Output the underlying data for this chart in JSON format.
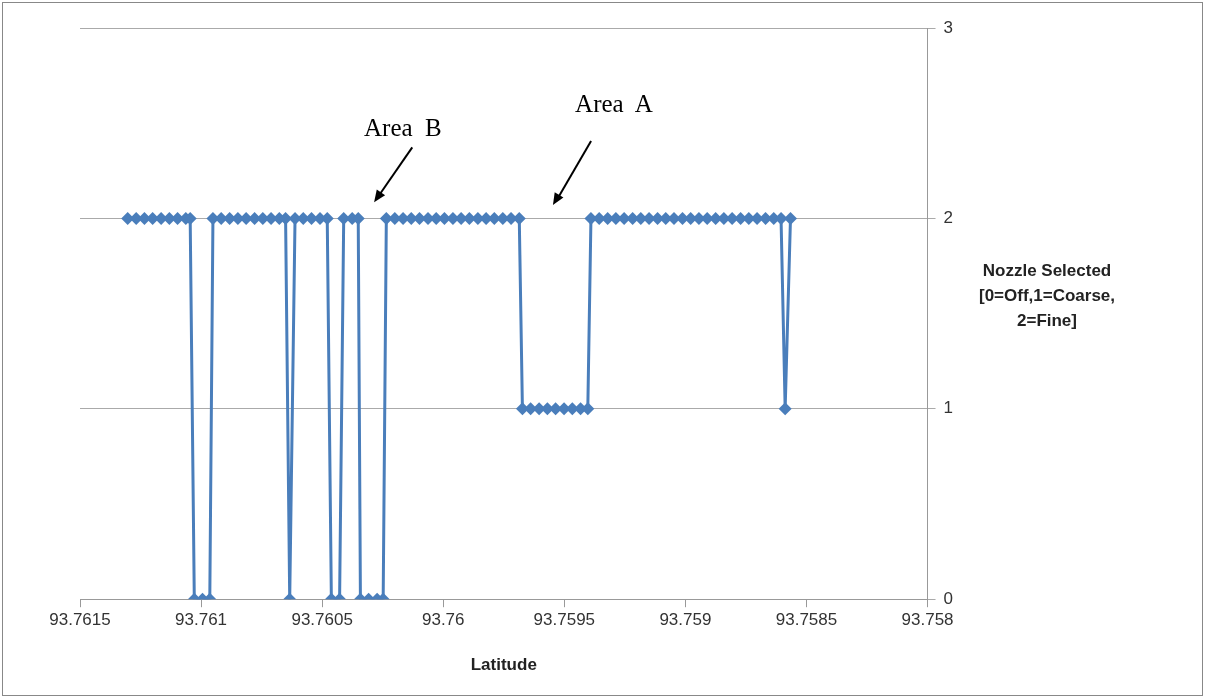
{
  "chart_data": {
    "type": "line",
    "xlabel": "Latitude",
    "ylabel": "Nozzle Selected [0=Off,1=Coarse, 2=Fine]",
    "xlim": [
      93.7615,
      93.758
    ],
    "xticks": [
      93.7615,
      93.761,
      93.7605,
      93.76,
      93.7595,
      93.759,
      93.7585,
      93.758
    ],
    "ylim": [
      0,
      3
    ],
    "yticks": [
      0,
      1,
      2,
      3
    ],
    "grid": "y",
    "legend": false,
    "marker": "diamond",
    "line_style": "solid",
    "series": [
      {
        "color": "#4a7ebb",
        "x": [
          93.761303,
          93.761268,
          93.761234,
          93.7612,
          93.761165,
          93.761131,
          93.761097,
          93.761063,
          93.761045,
          93.761028,
          93.760994,
          93.760964,
          93.760951,
          93.760917,
          93.760882,
          93.760848,
          93.760814,
          93.760779,
          93.760745,
          93.760711,
          93.760677,
          93.760651,
          93.760634,
          93.760612,
          93.760578,
          93.760544,
          93.760509,
          93.760479,
          93.760462,
          93.760428,
          93.760411,
          93.760376,
          93.760351,
          93.760342,
          93.760308,
          93.760273,
          93.760248,
          93.760235,
          93.7602,
          93.760166,
          93.760132,
          93.760098,
          93.760063,
          93.760029,
          93.759995,
          93.75996,
          93.759926,
          93.759892,
          93.759857,
          93.759823,
          93.759789,
          93.759754,
          93.75972,
          93.759686,
          93.759673,
          93.759639,
          93.759604,
          93.75957,
          93.759536,
          93.759501,
          93.759467,
          93.759433,
          93.759403,
          93.75939,
          93.759356,
          93.759321,
          93.759287,
          93.759253,
          93.759218,
          93.759184,
          93.75915,
          93.759115,
          93.759081,
          93.759047,
          93.759012,
          93.758978,
          93.758944,
          93.75891,
          93.758875,
          93.758841,
          93.758807,
          93.758772,
          93.758738,
          93.758704,
          93.758669,
          93.758635,
          93.758605,
          93.758588,
          93.758566
        ],
        "values": [
          2,
          2,
          2,
          2,
          2,
          2,
          2,
          2,
          2,
          0,
          0,
          0,
          2,
          2,
          2,
          2,
          2,
          2,
          2,
          2,
          2,
          2,
          0,
          2,
          2,
          2,
          2,
          2,
          0,
          0,
          2,
          2,
          2,
          0,
          0,
          0,
          0,
          2,
          2,
          2,
          2,
          2,
          2,
          2,
          2,
          2,
          2,
          2,
          2,
          2,
          2,
          2,
          2,
          2,
          1,
          1,
          1,
          1,
          1,
          1,
          1,
          1,
          1,
          2,
          2,
          2,
          2,
          2,
          2,
          2,
          2,
          2,
          2,
          2,
          2,
          2,
          2,
          2,
          2,
          2,
          2,
          2,
          2,
          2,
          2,
          2,
          2,
          1,
          2
        ]
      }
    ],
    "annotations": [
      "Area  B",
      "Area  A"
    ]
  }
}
